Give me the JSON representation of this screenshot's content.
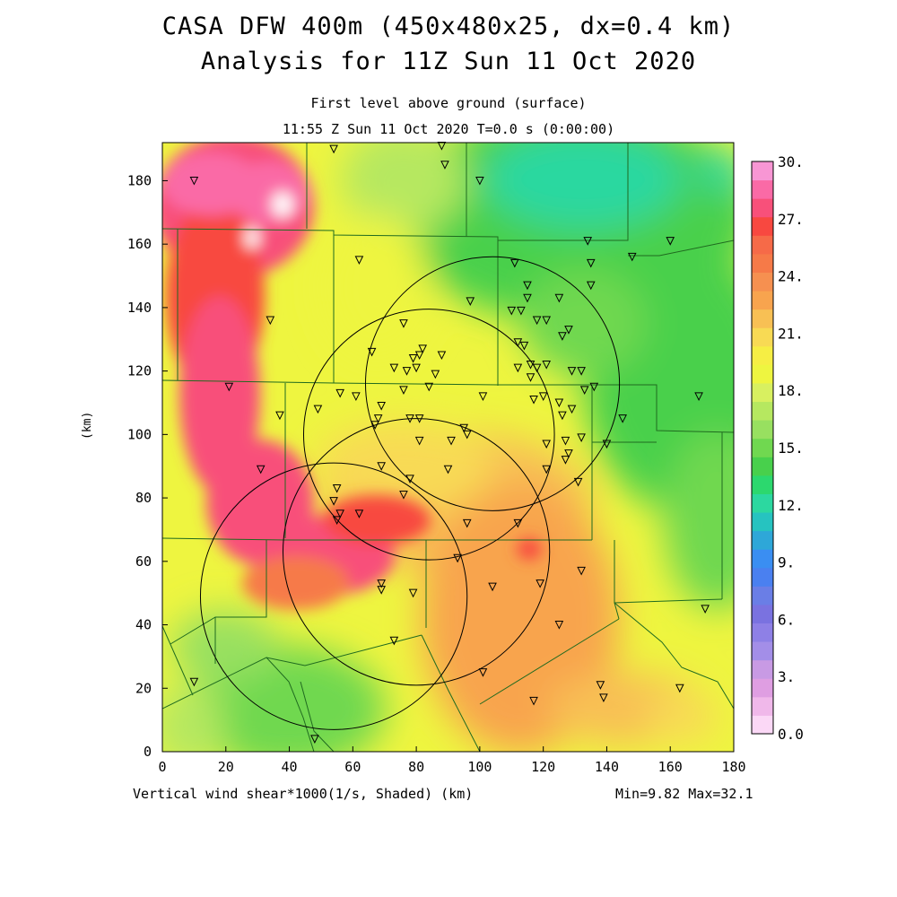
{
  "header": {
    "title_line1": "CASA DFW 400m (450x480x25, dx=0.4 km)",
    "title_line2": "Analysis for 11Z Sun 11 Oct 2020",
    "subtitle_line1": "First level above ground (surface)",
    "subtitle_line2": "11:55 Z Sun 11 Oct 2020   T=0.0 s (0:00:00)"
  },
  "axes": {
    "x_ticks": [
      "0",
      "20",
      "40",
      "60",
      "80",
      "100",
      "120",
      "140",
      "160",
      "180"
    ],
    "y_ticks": [
      "0",
      "20",
      "40",
      "60",
      "80",
      "100",
      "120",
      "140",
      "160",
      "180"
    ],
    "y_label": "(km)",
    "x_caption": "Vertical wind shear*1000(1/s, Shaded)  (km)",
    "minmax": "Min=9.82 Max=32.1",
    "xlim": [
      0,
      180
    ],
    "ylim": [
      0,
      192
    ]
  },
  "colorbar": {
    "labels": [
      "0.0",
      "3.",
      "6.",
      "9.",
      "12.",
      "15.",
      "18.",
      "21.",
      "24.",
      "27.",
      "30."
    ],
    "colors": [
      "#fbd8f6",
      "#f0b8ea",
      "#df9ee2",
      "#c89ae4",
      "#a38ee8",
      "#8e80e6",
      "#7a72e0",
      "#6a7ee6",
      "#4a80f0",
      "#3a8ef2",
      "#2ea7d8",
      "#26c3c0",
      "#2cd8a0",
      "#2cd86e",
      "#48d04c",
      "#70d850",
      "#98e060",
      "#b6e860",
      "#d8f060",
      "#eef540",
      "#f6ee44",
      "#f8da54",
      "#f8c054",
      "#f8a44e",
      "#f69050",
      "#f67a48",
      "#f66a48",
      "#f84840",
      "#f8507a",
      "#fa6aa6",
      "#f896d4"
    ]
  },
  "radar_circles": [
    {
      "x": 104,
      "y": 116,
      "r": 40
    },
    {
      "x": 84,
      "y": 100,
      "r": 39.5
    },
    {
      "x": 80,
      "y": 63,
      "r": 42
    },
    {
      "x": 54,
      "y": 49,
      "r": 42
    }
  ],
  "stations_km": [
    [
      88,
      191
    ],
    [
      54,
      190
    ],
    [
      89,
      185
    ],
    [
      10,
      180
    ],
    [
      100,
      180
    ],
    [
      134,
      161
    ],
    [
      160,
      161
    ],
    [
      148,
      156
    ],
    [
      62,
      155
    ],
    [
      135,
      154
    ],
    [
      111,
      154
    ],
    [
      115,
      147
    ],
    [
      135,
      147
    ],
    [
      115,
      143
    ],
    [
      125,
      143
    ],
    [
      97,
      142
    ],
    [
      110,
      139
    ],
    [
      113,
      139
    ],
    [
      76,
      135
    ],
    [
      118,
      136
    ],
    [
      121,
      136
    ],
    [
      128,
      133
    ],
    [
      126,
      131
    ],
    [
      112,
      129
    ],
    [
      114,
      128
    ],
    [
      34,
      136
    ],
    [
      66,
      126
    ],
    [
      82,
      127
    ],
    [
      81,
      125
    ],
    [
      79,
      124
    ],
    [
      88,
      125
    ],
    [
      77,
      120
    ],
    [
      73,
      121
    ],
    [
      80,
      121
    ],
    [
      86,
      119
    ],
    [
      116,
      122
    ],
    [
      118,
      121
    ],
    [
      121,
      122
    ],
    [
      112,
      121
    ],
    [
      129,
      120
    ],
    [
      132,
      120
    ],
    [
      116,
      118
    ],
    [
      56,
      113
    ],
    [
      61,
      112
    ],
    [
      76,
      114
    ],
    [
      84,
      115
    ],
    [
      101,
      112
    ],
    [
      136,
      115
    ],
    [
      133,
      114
    ],
    [
      117,
      111
    ],
    [
      120,
      112
    ],
    [
      69,
      109
    ],
    [
      49,
      108
    ],
    [
      125,
      110
    ],
    [
      129,
      108
    ],
    [
      126,
      106
    ],
    [
      37,
      106
    ],
    [
      21,
      115
    ],
    [
      169,
      112
    ],
    [
      145,
      105
    ],
    [
      78,
      105
    ],
    [
      81,
      105
    ],
    [
      68,
      105
    ],
    [
      67,
      103
    ],
    [
      95,
      102
    ],
    [
      91,
      98
    ],
    [
      96,
      100
    ],
    [
      81,
      98
    ],
    [
      121,
      97
    ],
    [
      132,
      99
    ],
    [
      127,
      98
    ],
    [
      128,
      94
    ],
    [
      140,
      97
    ],
    [
      127,
      92
    ],
    [
      121,
      89
    ],
    [
      69,
      90
    ],
    [
      90,
      89
    ],
    [
      31,
      89
    ],
    [
      78,
      86
    ],
    [
      131,
      85
    ],
    [
      55,
      83
    ],
    [
      54,
      79
    ],
    [
      76,
      81
    ],
    [
      56,
      75
    ],
    [
      62,
      75
    ],
    [
      55,
      73
    ],
    [
      96,
      72
    ],
    [
      112,
      72
    ],
    [
      93,
      61
    ],
    [
      132,
      57
    ],
    [
      69,
      53
    ],
    [
      69,
      51
    ],
    [
      79,
      50
    ],
    [
      119,
      53
    ],
    [
      104,
      52
    ],
    [
      171,
      45
    ],
    [
      125,
      40
    ],
    [
      73,
      35
    ],
    [
      101,
      25
    ],
    [
      138,
      21
    ],
    [
      139,
      17
    ],
    [
      163,
      20
    ],
    [
      10,
      22
    ],
    [
      117,
      16
    ],
    [
      48,
      4
    ]
  ]
}
